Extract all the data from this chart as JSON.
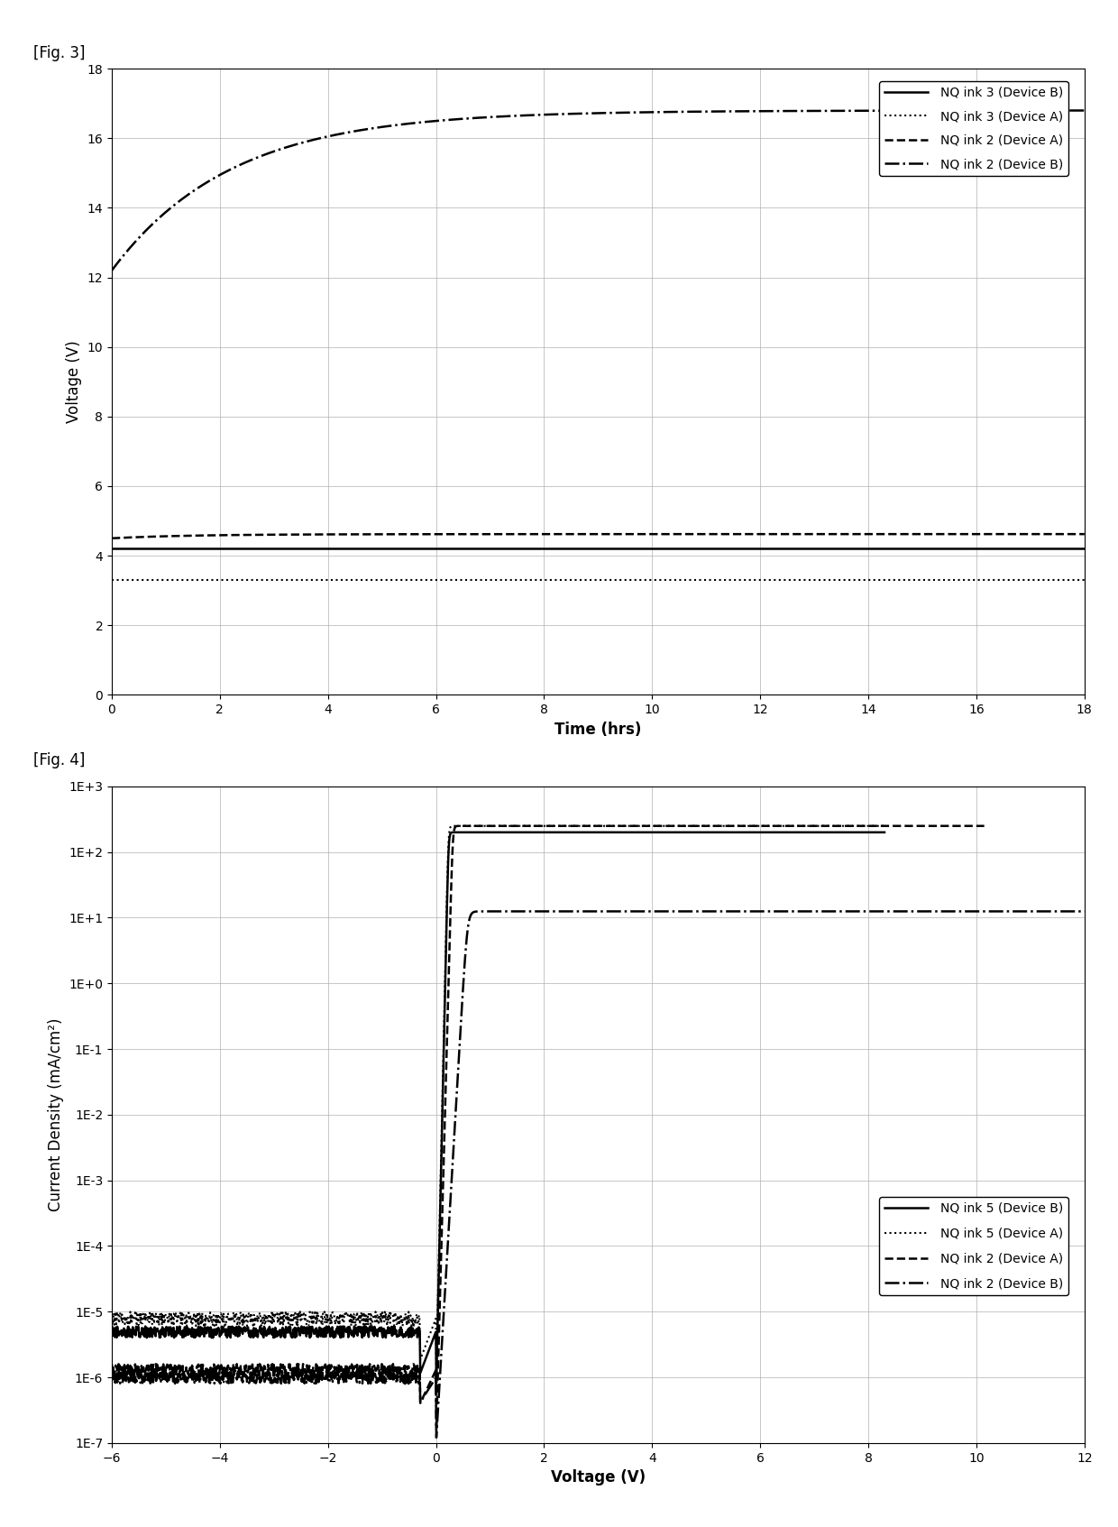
{
  "fig3": {
    "title": "[Fig. 3]",
    "xlabel": "Time (hrs)",
    "ylabel": "Voltage (V)",
    "xlim": [
      0,
      18
    ],
    "ylim": [
      0,
      18
    ],
    "xticks": [
      0,
      2,
      4,
      6,
      8,
      10,
      12,
      14,
      16,
      18
    ],
    "yticks": [
      0,
      2,
      4,
      6,
      8,
      10,
      12,
      14,
      16,
      18
    ],
    "legend": [
      {
        "label": "NQ ink 3 (Device B)",
        "linestyle": "solid",
        "linewidth": 1.8
      },
      {
        "label": "NQ ink 3 (Device A)",
        "linestyle": "dotted",
        "linewidth": 1.5
      },
      {
        "label": "NQ ink 2 (Device A)",
        "linestyle": "dashed",
        "linewidth": 1.8
      },
      {
        "label": "NQ ink 2 (Device B)",
        "linestyle": "dashdot",
        "linewidth": 1.8
      }
    ]
  },
  "fig4": {
    "title": "[Fig. 4]",
    "xlabel": "Voltage (V)",
    "ylabel": "Current Density (mA/cm²)",
    "xlim": [
      -6,
      12
    ],
    "ylim_log": [
      -7,
      3
    ],
    "xticks": [
      -6,
      -4,
      -2,
      0,
      2,
      4,
      6,
      8,
      10,
      12
    ],
    "legend": [
      {
        "label": "NQ ink 5 (Device B)",
        "linestyle": "solid",
        "linewidth": 1.8
      },
      {
        "label": "NQ ink 5 (Device A)",
        "linestyle": "dotted",
        "linewidth": 1.5
      },
      {
        "label": "NQ ink 2 (Device A)",
        "linestyle": "dashed",
        "linewidth": 1.8
      },
      {
        "label": "NQ ink 2 (Device B)",
        "linestyle": "dashdot",
        "linewidth": 1.8
      }
    ]
  },
  "color": "black",
  "grid_color": "#b0b0b0",
  "background": "white",
  "fig_label_fontsize": 12,
  "axis_label_fontsize": 12,
  "tick_fontsize": 10,
  "legend_fontsize": 10
}
